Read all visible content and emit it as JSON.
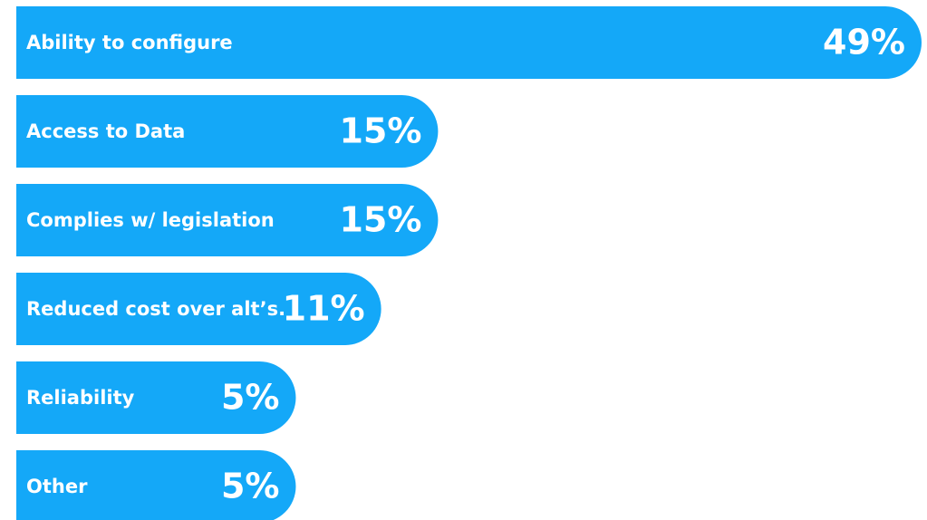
{
  "chart_data": {
    "type": "bar",
    "orientation": "horizontal",
    "categories": [
      "Ability to configure",
      "Access to Data",
      "Complies w/ legislation",
      "Reduced cost over alt’s.",
      "Reliability",
      "Other"
    ],
    "values": [
      49,
      15,
      15,
      11,
      5,
      5
    ],
    "value_labels": [
      "49%",
      "15%",
      "15%",
      "11%",
      "5%",
      "5%"
    ],
    "color": "#14a8f8"
  }
}
